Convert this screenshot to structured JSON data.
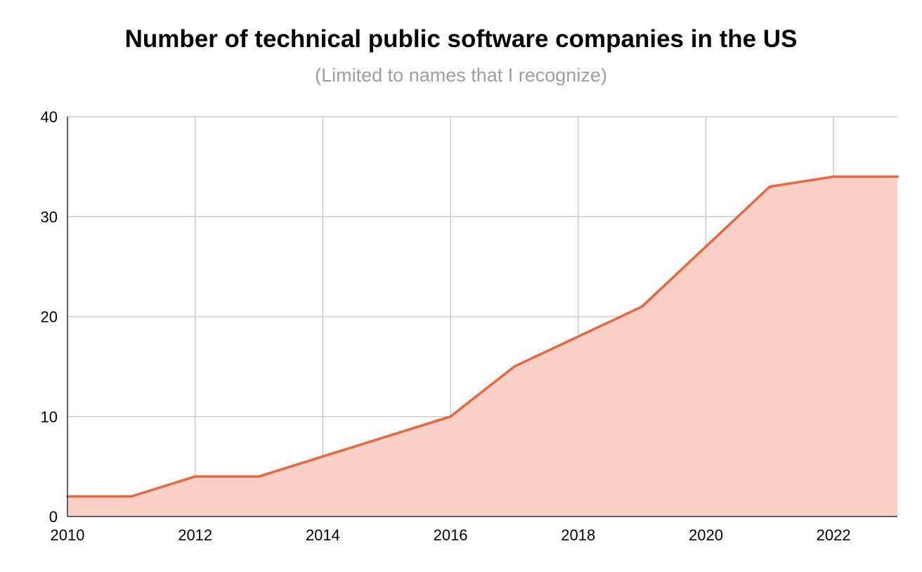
{
  "chart_data": {
    "type": "area",
    "title": "Number of technical public software companies in the US",
    "subtitle": "(Limited to names that I recognize)",
    "xlabel": "",
    "ylabel": "",
    "x": [
      2010,
      2011,
      2012,
      2013,
      2014,
      2015,
      2016,
      2017,
      2018,
      2019,
      2020,
      2021,
      2022,
      2023
    ],
    "values": [
      2,
      2,
      4,
      4,
      6,
      8,
      10,
      15,
      18,
      21,
      27,
      33,
      34,
      34
    ],
    "xlim": [
      2010,
      2023
    ],
    "ylim": [
      0,
      40
    ],
    "x_ticks": [
      "2010",
      "2012",
      "2014",
      "2016",
      "2018",
      "2020",
      "2022"
    ],
    "y_ticks": [
      "0",
      "10",
      "20",
      "30",
      "40"
    ],
    "grid": true,
    "legend": "none",
    "colors": {
      "line": "#e8673f",
      "fill": "#f9cfc6",
      "grid": "#cccccc",
      "axis": "#333333"
    }
  }
}
